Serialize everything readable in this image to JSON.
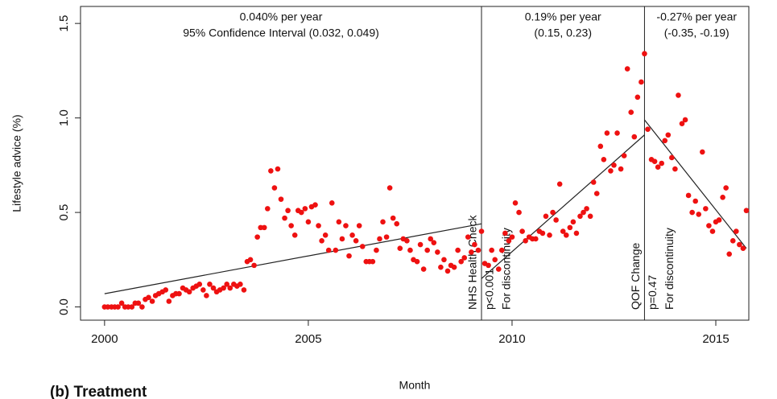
{
  "chart_data": {
    "type": "scatter",
    "x_label": "Month",
    "y_label": "Lifestyle advice (%)",
    "caption": "(b) Treatment",
    "xlim": [
      1999.41,
      2015.81
    ],
    "ylim": [
      -0.07,
      1.59
    ],
    "xticks": [
      2000,
      2005,
      2010,
      2015
    ],
    "yticks": [
      {
        "value": 0,
        "label": "0.0"
      },
      {
        "value": 0.5,
        "label": "0.5"
      },
      {
        "value": 1,
        "label": "1.0"
      },
      {
        "value": 1.5,
        "label": "1.5"
      }
    ],
    "series": [
      {
        "color": "#ee1111",
        "x": [
          2000.0,
          2000.08,
          2000.17,
          2000.25,
          2000.33,
          2000.42,
          2000.5,
          2000.58,
          2000.67,
          2000.75,
          2000.83,
          2000.92,
          2001.0,
          2001.08,
          2001.17,
          2001.25,
          2001.33,
          2001.42,
          2001.5,
          2001.58,
          2001.67,
          2001.75,
          2001.83,
          2001.92,
          2002.0,
          2002.08,
          2002.17,
          2002.25,
          2002.33,
          2002.42,
          2002.5,
          2002.58,
          2002.67,
          2002.75,
          2002.83,
          2002.92,
          2003.0,
          2003.08,
          2003.17,
          2003.25,
          2003.33,
          2003.42,
          2003.5,
          2003.58,
          2003.67,
          2003.75,
          2003.83,
          2003.92,
          2004.0,
          2004.08,
          2004.17,
          2004.25,
          2004.33,
          2004.42,
          2004.5,
          2004.58,
          2004.67,
          2004.75,
          2004.83,
          2004.92,
          2005.0,
          2005.08,
          2005.17,
          2005.25,
          2005.33,
          2005.42,
          2005.5,
          2005.58,
          2005.67,
          2005.75,
          2005.83,
          2005.92,
          2006.0,
          2006.08,
          2006.17,
          2006.25,
          2006.33,
          2006.42,
          2006.5,
          2006.58,
          2006.67,
          2006.75,
          2006.83,
          2006.92,
          2007.0,
          2007.08,
          2007.17,
          2007.25,
          2007.33,
          2007.42,
          2007.5,
          2007.58,
          2007.67,
          2007.75,
          2007.83,
          2007.92,
          2008.0,
          2008.08,
          2008.17,
          2008.25,
          2008.33,
          2008.42,
          2008.5,
          2008.58,
          2008.67,
          2008.75,
          2008.83,
          2008.92,
          2009.0,
          2009.08,
          2009.17,
          2009.25,
          2009.33,
          2009.42,
          2009.5,
          2009.58,
          2009.67,
          2009.75,
          2009.83,
          2009.92,
          2010.0,
          2010.08,
          2010.17,
          2010.25,
          2010.33,
          2010.42,
          2010.5,
          2010.58,
          2010.67,
          2010.75,
          2010.83,
          2010.92,
          2011.0,
          2011.08,
          2011.17,
          2011.25,
          2011.33,
          2011.42,
          2011.5,
          2011.58,
          2011.67,
          2011.75,
          2011.83,
          2011.92,
          2012.0,
          2012.08,
          2012.17,
          2012.25,
          2012.33,
          2012.42,
          2012.5,
          2012.58,
          2012.67,
          2012.75,
          2012.83,
          2012.92,
          2013.0,
          2013.08,
          2013.17,
          2013.25,
          2013.33,
          2013.42,
          2013.5,
          2013.58,
          2013.67,
          2013.75,
          2013.83,
          2013.92,
          2014.0,
          2014.08,
          2014.17,
          2014.25,
          2014.33,
          2014.42,
          2014.5,
          2014.58,
          2014.67,
          2014.75,
          2014.83,
          2014.92,
          2015.0,
          2015.08,
          2015.17,
          2015.25,
          2015.33,
          2015.42,
          2015.5,
          2015.58,
          2015.67,
          2015.75
        ],
        "values": [
          0,
          0,
          0,
          0,
          0,
          0.02,
          0,
          0,
          0,
          0.02,
          0.02,
          0,
          0.04,
          0.05,
          0.03,
          0.06,
          0.07,
          0.08,
          0.09,
          0.03,
          0.06,
          0.07,
          0.07,
          0.1,
          0.09,
          0.08,
          0.1,
          0.11,
          0.12,
          0.09,
          0.06,
          0.12,
          0.1,
          0.08,
          0.09,
          0.1,
          0.12,
          0.1,
          0.12,
          0.11,
          0.12,
          0.09,
          0.24,
          0.25,
          0.22,
          0.37,
          0.42,
          0.42,
          0.52,
          0.72,
          0.63,
          0.73,
          0.57,
          0.47,
          0.51,
          0.43,
          0.38,
          0.51,
          0.5,
          0.52,
          0.45,
          0.53,
          0.54,
          0.43,
          0.35,
          0.38,
          0.3,
          0.55,
          0.3,
          0.45,
          0.36,
          0.43,
          0.27,
          0.38,
          0.35,
          0.43,
          0.32,
          0.24,
          0.24,
          0.24,
          0.3,
          0.36,
          0.45,
          0.37,
          0.63,
          0.47,
          0.44,
          0.31,
          0.36,
          0.35,
          0.3,
          0.25,
          0.24,
          0.33,
          0.2,
          0.3,
          0.36,
          0.34,
          0.29,
          0.21,
          0.25,
          0.19,
          0.22,
          0.21,
          0.3,
          0.24,
          0.26,
          0.37,
          0.29,
          0.33,
          0.3,
          0.4,
          0.23,
          0.22,
          0.3,
          0.25,
          0.2,
          0.3,
          0.39,
          0.35,
          0.37,
          0.55,
          0.5,
          0.4,
          0.35,
          0.37,
          0.36,
          0.36,
          0.4,
          0.39,
          0.48,
          0.38,
          0.5,
          0.46,
          0.65,
          0.4,
          0.38,
          0.42,
          0.45,
          0.39,
          0.48,
          0.5,
          0.52,
          0.48,
          0.66,
          0.6,
          0.85,
          0.78,
          0.92,
          0.72,
          0.75,
          0.92,
          0.73,
          0.8,
          1.26,
          1.03,
          0.9,
          1.11,
          1.19,
          1.34,
          0.94,
          0.78,
          0.77,
          0.74,
          0.76,
          0.88,
          0.91,
          0.79,
          0.73,
          1.12,
          0.97,
          0.99,
          0.59,
          0.5,
          0.56,
          0.49,
          0.82,
          0.52,
          0.43,
          0.4,
          0.45,
          0.46,
          0.58,
          0.63,
          0.28,
          0.35,
          0.4,
          0.33,
          0.31,
          0.51
        ]
      }
    ],
    "trend_lines": [
      {
        "x": [
          2000,
          2009.25
        ],
        "y": [
          0.07,
          0.44
        ]
      },
      {
        "x": [
          2009.25,
          2013.25
        ],
        "y": [
          0.15,
          0.91
        ]
      },
      {
        "x": [
          2013.25,
          2015.75
        ],
        "y": [
          0.99,
          0.31
        ]
      }
    ],
    "regions": [
      {
        "line1": "0.040% per year",
        "line2": "95% Confidence Interval (0.032, 0.049)"
      },
      {
        "line1": "0.19% per year",
        "line2": "(0.15, 0.23)"
      },
      {
        "line1": "-0.27% per year",
        "line2": "(-0.35, -0.19)"
      }
    ],
    "breaks": [
      {
        "x": 2009.25,
        "label": "NHS Health Check",
        "p": "p<0.001",
        "note": "For discontinuity"
      },
      {
        "x": 2013.25,
        "label": "QOF Change",
        "p": "p=0.47",
        "note": "For discontinuity"
      }
    ]
  }
}
